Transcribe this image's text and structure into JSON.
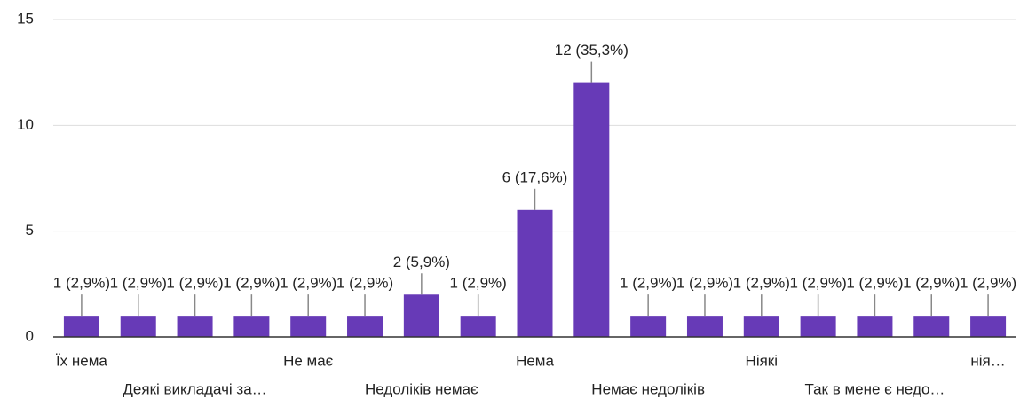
{
  "chart_data": {
    "type": "bar",
    "categories": [
      "Їх нема",
      null,
      "Деякі викладачі за…",
      null,
      "Не має",
      null,
      "Недоліків немає",
      null,
      "Нема",
      null,
      "Немає недоліків",
      null,
      "Ніякі",
      null,
      "Так в мене є недо…",
      null,
      "нія…"
    ],
    "values": [
      1,
      1,
      1,
      1,
      1,
      1,
      2,
      1,
      6,
      12,
      1,
      1,
      1,
      1,
      1,
      1,
      1
    ],
    "value_labels": [
      "1 (2,9%)",
      "1 (2,9%)",
      "1 (2,9%)",
      "1 (2,9%)",
      "1 (2,9%)",
      "1 (2,9%)",
      "2 (5,9%)",
      "1 (2,9%)",
      "6 (17,6%)",
      "12 (35,3%)",
      "1 (2,9%)",
      "1 (2,9%)",
      "1 (2,9%)",
      "1 (2,9%)",
      "1 (2,9%)",
      "1 (2,9%)",
      "1 (2,9%)"
    ],
    "color": "#673ab7",
    "ylim": [
      0,
      15
    ],
    "yticks": [
      0,
      5,
      10,
      15
    ],
    "grid": true
  }
}
